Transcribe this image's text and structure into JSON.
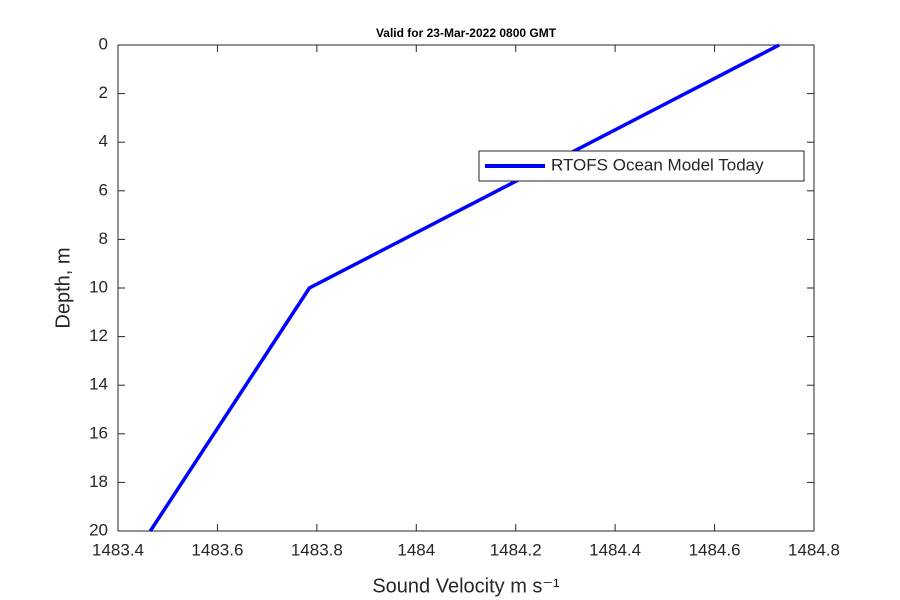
{
  "chart_data": {
    "type": "line",
    "title": "Valid for 23-Mar-2022 0800 GMT",
    "xlabel": "Sound Velocity m s⁻¹",
    "ylabel": "Depth, m",
    "x": [
      1484.73,
      1483.785,
      1483.465
    ],
    "series": [
      {
        "name": "RTOFS Ocean Model Today",
        "color": "#0000ff",
        "values": [
          0,
          10,
          20
        ]
      }
    ],
    "xlim": [
      1483.4,
      1484.8
    ],
    "xticks": [
      1483.4,
      1483.6,
      1483.8,
      1484,
      1484.2,
      1484.4,
      1484.6,
      1484.8
    ],
    "ylim": [
      0,
      20
    ],
    "yticks": [
      0,
      2,
      4,
      6,
      8,
      10,
      12,
      14,
      16,
      18,
      20
    ],
    "y_reversed": true,
    "grid": false,
    "legend": "northeast"
  }
}
